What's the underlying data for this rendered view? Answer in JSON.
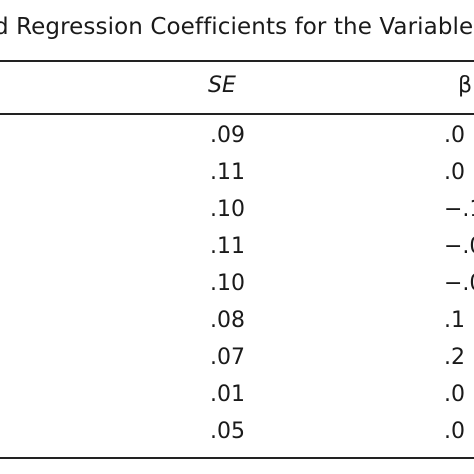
{
  "caption": "d Regression Coefficients for the Variables",
  "header": {
    "se_label": "SE",
    "beta_label": "β"
  },
  "rows": [
    {
      "se": ".09",
      "beta": ".0"
    },
    {
      "se": ".11",
      "beta": ".0"
    },
    {
      "se": ".10",
      "beta": "−.1"
    },
    {
      "se": ".11",
      "beta": "−.0"
    },
    {
      "se": ".10",
      "beta": "−.0"
    },
    {
      "se": ".08",
      "beta": ".1"
    },
    {
      "se": ".07",
      "beta": ".2"
    },
    {
      "se": ".01",
      "beta": ".0"
    },
    {
      "se": ".05",
      "beta": ".0"
    }
  ]
}
